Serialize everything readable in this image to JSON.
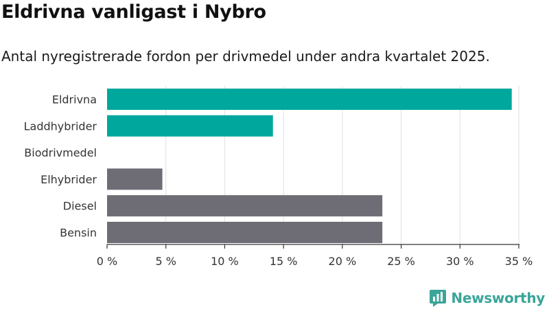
{
  "title": "Eldrivna vanligast i Nybro",
  "subtitle": "Antal nyregistrerade fordon per drivmedel under andra kvartalet 2025.",
  "brand": {
    "name": "Newsworthy",
    "icon": "newsworthy-logo-icon"
  },
  "colors": {
    "highlight": "#00a79d",
    "other": "#6e6d75",
    "brand": "#3aa598"
  },
  "chart_data": {
    "type": "bar",
    "orientation": "horizontal",
    "title": "Eldrivna vanligast i Nybro",
    "subtitle": "Antal nyregistrerade fordon per drivmedel under andra kvartalet 2025.",
    "categories": [
      "Eldrivna",
      "Laddhybrider",
      "Biodrivmedel",
      "Elhybrider",
      "Diesel",
      "Bensin"
    ],
    "values": [
      34.4,
      14.1,
      0,
      4.7,
      23.4,
      23.4
    ],
    "bar_colors": [
      "#00a79d",
      "#00a79d",
      "#00a79d",
      "#6e6d75",
      "#6e6d75",
      "#6e6d75"
    ],
    "xlim": [
      0,
      35
    ],
    "xticks": [
      0,
      5,
      10,
      15,
      20,
      25,
      30,
      35
    ],
    "xtick_labels": [
      "0 %",
      "5 %",
      "10 %",
      "15 %",
      "20 %",
      "25 %",
      "30 %",
      "35 %"
    ],
    "grid": true,
    "xlabel": "",
    "ylabel": ""
  }
}
